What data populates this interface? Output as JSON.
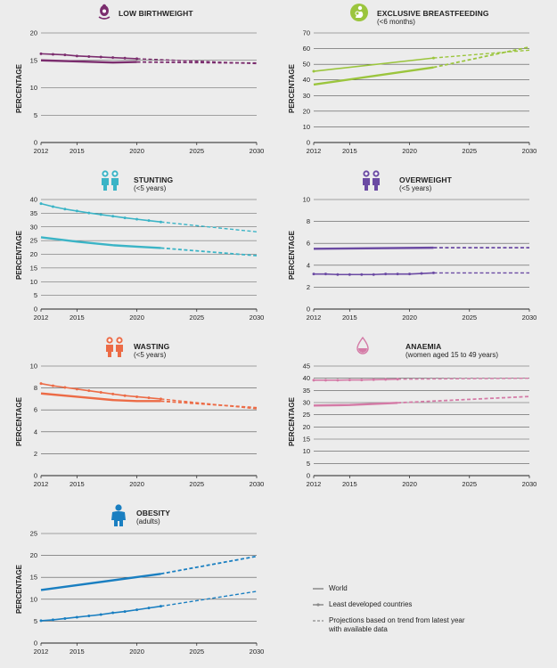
{
  "ylabel": "PERCENTAGE",
  "legend": {
    "world": "World",
    "ldc": "Least developed countries",
    "projection_line1": "Projections based on trend from latest year",
    "projection_line2": "with available data"
  },
  "chart_data": [
    {
      "type": "line",
      "title": "LOW BIRTHWEIGHT",
      "subtitle": "",
      "icon": "baby-scale-icon",
      "color": "#7b2d6e",
      "ylim": [
        0,
        20
      ],
      "yticks": [
        0,
        5,
        10,
        15,
        20
      ],
      "xticks": [
        2012,
        2015,
        2020,
        2025,
        2030
      ],
      "xlim": [
        2012,
        2030
      ],
      "series": [
        {
          "name": "World",
          "x": [
            2012,
            2015,
            2018,
            2020
          ],
          "values": [
            15.0,
            14.8,
            14.6,
            14.7
          ],
          "proj_x": [
            2020,
            2030
          ],
          "proj_values": [
            14.7,
            14.5
          ]
        },
        {
          "name": "Least developed countries",
          "x": [
            2012,
            2013,
            2014,
            2015,
            2016,
            2017,
            2018,
            2019,
            2020
          ],
          "values": [
            16.2,
            16.1,
            16.0,
            15.8,
            15.7,
            15.6,
            15.5,
            15.4,
            15.3
          ],
          "proj_x": [
            2020,
            2030
          ],
          "proj_values": [
            15.3,
            14.4
          ]
        }
      ]
    },
    {
      "type": "line",
      "title": "EXCLUSIVE BREASTFEEDING",
      "subtitle": "(<6 months)",
      "icon": "breastfeeding-icon",
      "color": "#9bc53d",
      "ylim": [
        0,
        70
      ],
      "yticks": [
        0,
        10,
        20,
        30,
        40,
        50,
        60,
        70
      ],
      "xticks": [
        2012,
        2015,
        2020,
        2025,
        2030
      ],
      "xlim": [
        2012,
        2030
      ],
      "series": [
        {
          "name": "World",
          "x": [
            2012,
            2022
          ],
          "values": [
            37,
            48
          ],
          "proj_x": [
            2022,
            2030
          ],
          "proj_values": [
            48,
            61
          ]
        },
        {
          "name": "Least developed countries",
          "x": [
            2012,
            2022
          ],
          "values": [
            45.5,
            54
          ],
          "proj_x": [
            2022,
            2030
          ],
          "proj_values": [
            54,
            59
          ]
        }
      ]
    },
    {
      "type": "line",
      "title": "STUNTING",
      "subtitle": "(<5 years)",
      "icon": "children-icon",
      "color": "#3bb4c6",
      "ylim": [
        0,
        40
      ],
      "yticks": [
        0,
        5,
        10,
        15,
        20,
        25,
        30,
        35,
        40
      ],
      "xticks": [
        2012,
        2015,
        2020,
        2025,
        2030
      ],
      "xlim": [
        2012,
        2030
      ],
      "series": [
        {
          "name": "World",
          "x": [
            2012,
            2015,
            2018,
            2020,
            2022
          ],
          "values": [
            26.2,
            24.6,
            23.3,
            22.8,
            22.3
          ],
          "proj_x": [
            2022,
            2030
          ],
          "proj_values": [
            22.3,
            19.5
          ]
        },
        {
          "name": "Least developed countries",
          "x": [
            2012,
            2013,
            2014,
            2015,
            2016,
            2017,
            2018,
            2019,
            2020,
            2021,
            2022
          ],
          "values": [
            38.5,
            37.4,
            36.5,
            35.8,
            35.1,
            34.5,
            33.9,
            33.3,
            32.8,
            32.3,
            31.8
          ],
          "proj_x": [
            2022,
            2030
          ],
          "proj_values": [
            31.8,
            28.2
          ]
        }
      ]
    },
    {
      "type": "line",
      "title": "OVERWEIGHT",
      "subtitle": "(<5 years)",
      "icon": "children-icon",
      "color": "#6b4aa3",
      "ylim": [
        0,
        10
      ],
      "yticks": [
        0,
        2,
        4,
        6,
        8,
        10
      ],
      "xticks": [
        2012,
        2015,
        2020,
        2025,
        2030
      ],
      "xlim": [
        2012,
        2030
      ],
      "series": [
        {
          "name": "World",
          "x": [
            2012,
            2022
          ],
          "values": [
            5.5,
            5.6
          ],
          "proj_x": [
            2022,
            2030
          ],
          "proj_values": [
            5.6,
            5.6
          ]
        },
        {
          "name": "Least developed countries",
          "x": [
            2012,
            2013,
            2014,
            2015,
            2016,
            2017,
            2018,
            2019,
            2020,
            2021,
            2022
          ],
          "values": [
            3.2,
            3.2,
            3.15,
            3.15,
            3.15,
            3.15,
            3.2,
            3.2,
            3.2,
            3.25,
            3.3
          ],
          "proj_x": [
            2022,
            2030
          ],
          "proj_values": [
            3.3,
            3.3
          ]
        }
      ]
    },
    {
      "type": "line",
      "title": "WASTING",
      "subtitle": "(<5 years)",
      "icon": "children-icon",
      "color": "#ec6b46",
      "ylim": [
        0,
        10
      ],
      "yticks": [
        0,
        2,
        4,
        6,
        8,
        10
      ],
      "xticks": [
        2012,
        2015,
        2020,
        2025,
        2030
      ],
      "xlim": [
        2012,
        2030
      ],
      "series": [
        {
          "name": "World",
          "x": [
            2012,
            2015,
            2018,
            2020,
            2022
          ],
          "values": [
            7.5,
            7.2,
            6.9,
            6.8,
            6.8
          ],
          "proj_x": [
            2022,
            2030
          ],
          "proj_values": [
            6.8,
            6.2
          ]
        },
        {
          "name": "Least developed countries",
          "x": [
            2012,
            2013,
            2014,
            2015,
            2016,
            2017,
            2018,
            2019,
            2020,
            2021,
            2022
          ],
          "values": [
            8.4,
            8.2,
            8.05,
            7.9,
            7.75,
            7.6,
            7.45,
            7.3,
            7.2,
            7.1,
            7.0
          ],
          "proj_x": [
            2022,
            2030
          ],
          "proj_values": [
            7.0,
            6.1
          ]
        }
      ]
    },
    {
      "type": "line",
      "title": "ANAEMIA",
      "subtitle": "(women aged 15 to 49 years)",
      "icon": "blood-drop-icon",
      "color": "#d47aa6",
      "ylim": [
        0,
        45
      ],
      "yticks": [
        0,
        5,
        10,
        15,
        20,
        25,
        30,
        35,
        40,
        45
      ],
      "xticks": [
        2012,
        2015,
        2020,
        2025,
        2030
      ],
      "xlim": [
        2012,
        2030
      ],
      "series": [
        {
          "name": "World",
          "x": [
            2012,
            2015,
            2019
          ],
          "values": [
            28.8,
            29.0,
            29.9
          ],
          "proj_x": [
            2019,
            2030
          ],
          "proj_values": [
            29.9,
            32.5
          ]
        },
        {
          "name": "Least developed countries",
          "x": [
            2012,
            2013,
            2014,
            2015,
            2016,
            2017,
            2018,
            2019
          ],
          "values": [
            39.2,
            39.2,
            39.2,
            39.3,
            39.3,
            39.4,
            39.5,
            39.6
          ],
          "proj_x": [
            2019,
            2030
          ],
          "proj_values": [
            39.6,
            40.0
          ]
        }
      ]
    },
    {
      "type": "line",
      "title": "OBESITY",
      "subtitle": "(adults)",
      "icon": "adult-icon",
      "color": "#1a7fc1",
      "ylim": [
        0,
        25
      ],
      "yticks": [
        0,
        5,
        10,
        15,
        20,
        25
      ],
      "xticks": [
        2012,
        2015,
        2020,
        2025,
        2030
      ],
      "xlim": [
        2012,
        2030
      ],
      "series": [
        {
          "name": "World",
          "x": [
            2012,
            2022
          ],
          "values": [
            12.1,
            15.8
          ],
          "proj_x": [
            2022,
            2030
          ],
          "proj_values": [
            15.8,
            19.8
          ]
        },
        {
          "name": "Least developed countries",
          "x": [
            2012,
            2013,
            2014,
            2015,
            2016,
            2017,
            2018,
            2019,
            2020,
            2021,
            2022
          ],
          "values": [
            5.1,
            5.3,
            5.6,
            5.9,
            6.2,
            6.5,
            6.9,
            7.2,
            7.6,
            8.0,
            8.4
          ],
          "proj_x": [
            2022,
            2030
          ],
          "proj_values": [
            8.4,
            11.8
          ]
        }
      ]
    }
  ]
}
